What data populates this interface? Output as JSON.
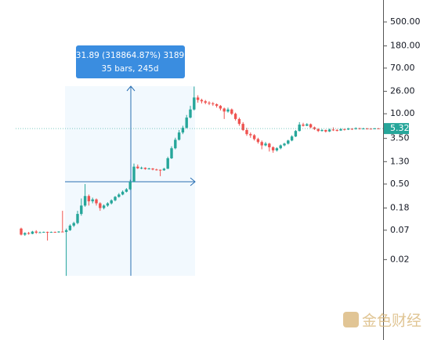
{
  "chart_data": {
    "type": "candlestick",
    "log_scale": true,
    "up_color": "#26a69a",
    "down_color": "#ef5350",
    "open": [
      0.075,
      0.058,
      0.062,
      0.06,
      0.066,
      0.063,
      0.064,
      0.065,
      0.064,
      0.065,
      0.064,
      0.066,
      0.065,
      0.07,
      0.085,
      0.095,
      0.14,
      0.2,
      0.3,
      0.24,
      0.26,
      0.22,
      0.18,
      0.2,
      0.22,
      0.25,
      0.29,
      0.32,
      0.36,
      0.4,
      0.55,
      1.05,
      0.98,
      1.0,
      0.95,
      0.97,
      0.93,
      0.92,
      0.9,
      0.96,
      1.5,
      2.3,
      3.3,
      4.5,
      5.5,
      8.5,
      12,
      20,
      18,
      17,
      16,
      15.5,
      15,
      14,
      12.5,
      11,
      12,
      10,
      8,
      6.5,
      5,
      4.2,
      4.0,
      3.4,
      3.0,
      2.6,
      2.8,
      2.4,
      2.1,
      2.3,
      2.6,
      2.8,
      3.2,
      3.8,
      4.8,
      6.3,
      6.0,
      6.4,
      5.6,
      5.2,
      4.8,
      5.0,
      4.7,
      5.1,
      5.0,
      4.9,
      5.2,
      5.1,
      5.3,
      5.2,
      5.4,
      5.3,
      5.32,
      5.3,
      5.25,
      5.35
    ],
    "high": [
      0.078,
      0.064,
      0.065,
      0.068,
      0.07,
      0.066,
      0.066,
      0.066,
      0.066,
      0.066,
      0.067,
      0.16,
      0.075,
      0.09,
      0.1,
      0.16,
      0.27,
      0.5,
      0.32,
      0.28,
      0.27,
      0.23,
      0.21,
      0.23,
      0.26,
      0.3,
      0.34,
      0.38,
      0.42,
      0.6,
      1.2,
      1.15,
      1.05,
      1.02,
      1.0,
      0.99,
      0.96,
      0.93,
      1.0,
      1.6,
      2.5,
      3.6,
      5.0,
      6.0,
      9.5,
      14,
      31.89,
      22,
      19,
      18,
      17,
      16.5,
      15.5,
      14.5,
      13,
      13,
      12.5,
      10.5,
      8.5,
      7,
      5.5,
      4.5,
      4.2,
      3.6,
      3.2,
      3.0,
      2.9,
      2.5,
      2.4,
      2.7,
      2.9,
      3.3,
      4.0,
      5.0,
      7.0,
      6.8,
      6.7,
      6.6,
      5.8,
      5.4,
      5.2,
      5.1,
      5.3,
      5.6,
      5.2,
      5.4,
      5.3,
      5.5,
      5.4,
      5.6,
      5.5,
      5.5,
      5.45,
      5.4,
      5.45,
      5.45
    ],
    "low": [
      0.056,
      0.055,
      0.058,
      0.059,
      0.06,
      0.062,
      0.063,
      0.045,
      0.063,
      0.063,
      0.063,
      0.064,
      0.01,
      0.068,
      0.08,
      0.09,
      0.13,
      0.19,
      0.2,
      0.22,
      0.2,
      0.16,
      0.17,
      0.19,
      0.21,
      0.24,
      0.28,
      0.31,
      0.35,
      0.39,
      0.54,
      0.95,
      0.94,
      0.92,
      0.93,
      0.9,
      0.89,
      0.7,
      0.88,
      0.95,
      1.45,
      2.2,
      3.2,
      4.2,
      5.3,
      8.2,
      11.5,
      16,
      15.5,
      15,
      14.5,
      14,
      13,
      11.5,
      8,
      10.5,
      9.5,
      7.5,
      6,
      4.8,
      3.9,
      3.6,
      3.2,
      2.8,
      2.2,
      2.5,
      2.0,
      1.9,
      2.0,
      2.2,
      2.5,
      2.7,
      3.1,
      3.7,
      4.7,
      5.8,
      5.9,
      5.4,
      5.0,
      4.6,
      4.7,
      4.5,
      4.6,
      4.8,
      4.7,
      4.8,
      4.9,
      5.0,
      5.0,
      5.1,
      5.1,
      5.2,
      5.2,
      5.15,
      5.2,
      5.25
    ],
    "close": [
      0.058,
      0.062,
      0.06,
      0.066,
      0.063,
      0.064,
      0.065,
      0.064,
      0.065,
      0.064,
      0.066,
      0.065,
      0.07,
      0.085,
      0.095,
      0.14,
      0.2,
      0.3,
      0.24,
      0.26,
      0.22,
      0.18,
      0.2,
      0.22,
      0.25,
      0.29,
      0.32,
      0.36,
      0.4,
      0.55,
      1.05,
      0.98,
      1.0,
      0.95,
      0.97,
      0.93,
      0.92,
      0.9,
      0.96,
      1.5,
      2.3,
      3.3,
      4.5,
      5.5,
      8.5,
      12,
      20,
      18,
      17,
      16,
      15.5,
      15,
      14,
      12.5,
      11,
      12,
      10,
      8,
      6.5,
      5,
      4.2,
      4.0,
      3.4,
      3.0,
      2.6,
      2.8,
      2.4,
      2.1,
      2.3,
      2.6,
      2.8,
      3.2,
      3.8,
      4.8,
      6.3,
      6.0,
      6.4,
      5.6,
      5.2,
      4.8,
      5.0,
      4.7,
      5.1,
      5.0,
      4.9,
      5.2,
      5.1,
      5.3,
      5.2,
      5.4,
      5.3,
      5.32,
      5.3,
      5.25,
      5.35,
      5.32
    ],
    "ylim": [
      0.00065,
      1274
    ],
    "yticks": [
      {
        "value": 500,
        "label": "500.00"
      },
      {
        "value": 180,
        "label": "180.00"
      },
      {
        "value": 70,
        "label": "70.00"
      },
      {
        "value": 26,
        "label": "26.00"
      },
      {
        "value": 10,
        "label": "10.00"
      },
      {
        "value": 3.5,
        "label": "3.50"
      },
      {
        "value": 1.3,
        "label": "1.30"
      },
      {
        "value": 0.5,
        "label": "0.50"
      },
      {
        "value": 0.18,
        "label": "0.18"
      },
      {
        "value": 0.07,
        "label": "0.07"
      },
      {
        "value": 0.02,
        "label": "0.02"
      }
    ],
    "last_price": {
      "value": 5.32,
      "label": "5.32"
    },
    "measure": {
      "line1": "31.89 (318864.87%) 3189",
      "line2": "35 bars, 245d"
    },
    "watermark": "金色财经"
  }
}
